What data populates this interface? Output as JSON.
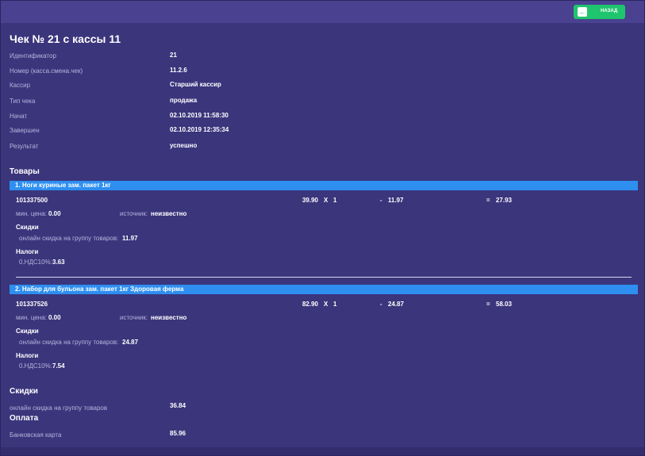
{
  "header": {
    "button": "НАЗАД"
  },
  "title": "Чек № 21 с кассы 11",
  "info": [
    {
      "label": "Идентификатор",
      "value": "21"
    },
    {
      "label": "Номер (касса.смена.чек)",
      "value": "11.2.6"
    },
    {
      "label": "Кассир",
      "value": "Старший кассир"
    },
    {
      "label": "Тип чека",
      "value": "продажа"
    },
    {
      "label": "Начат",
      "value": "02.10.2019 11:58:30"
    },
    {
      "label": "Завершен",
      "value": "02.10.2019 12:35:34"
    },
    {
      "label": "Результат",
      "value": "успешно"
    }
  ],
  "items_title": "Товары",
  "items": [
    {
      "header": "1. Ноги куриные зам. пакет 1кг",
      "code": "101337500",
      "price": "39.90",
      "multiply": "X",
      "quantity": "1",
      "minus": "-",
      "discount": "11.97",
      "equals": "=",
      "total": "27.93",
      "min_price_label": "мин. цена:",
      "min_price": "0.00",
      "source_label": "источник:",
      "source": "неизвестно",
      "discounts_title": "Скидки",
      "discount_label": "онлайн скидка на группу товаров:",
      "discount_value": "11.97",
      "taxes_title": "Налоги",
      "tax_label": "0.НДС10%:",
      "tax_value": "3.63"
    },
    {
      "header": "2. Набор для бульона зам. пакет 1кг Здоровая ферма",
      "code": "101337526",
      "price": "82.90",
      "multiply": "X",
      "quantity": "1",
      "minus": "-",
      "discount": "24.87",
      "equals": "=",
      "total": "58.03",
      "min_price_label": "мин. цена:",
      "min_price": "0.00",
      "source_label": "источник:",
      "source": "неизвестно",
      "discounts_title": "Скидки",
      "discount_label": "онлайн скидка на группу товаров:",
      "discount_value": "24.87",
      "taxes_title": "Налоги",
      "tax_label": "0.НДС10%:",
      "tax_value": "7.54"
    }
  ],
  "discounts": {
    "title": "Скидки",
    "label": "онлайн скидка на группу товаров",
    "value": "36.84"
  },
  "payment": {
    "title": "Оплата",
    "label": "Банковская карта",
    "value": "85.96"
  }
}
